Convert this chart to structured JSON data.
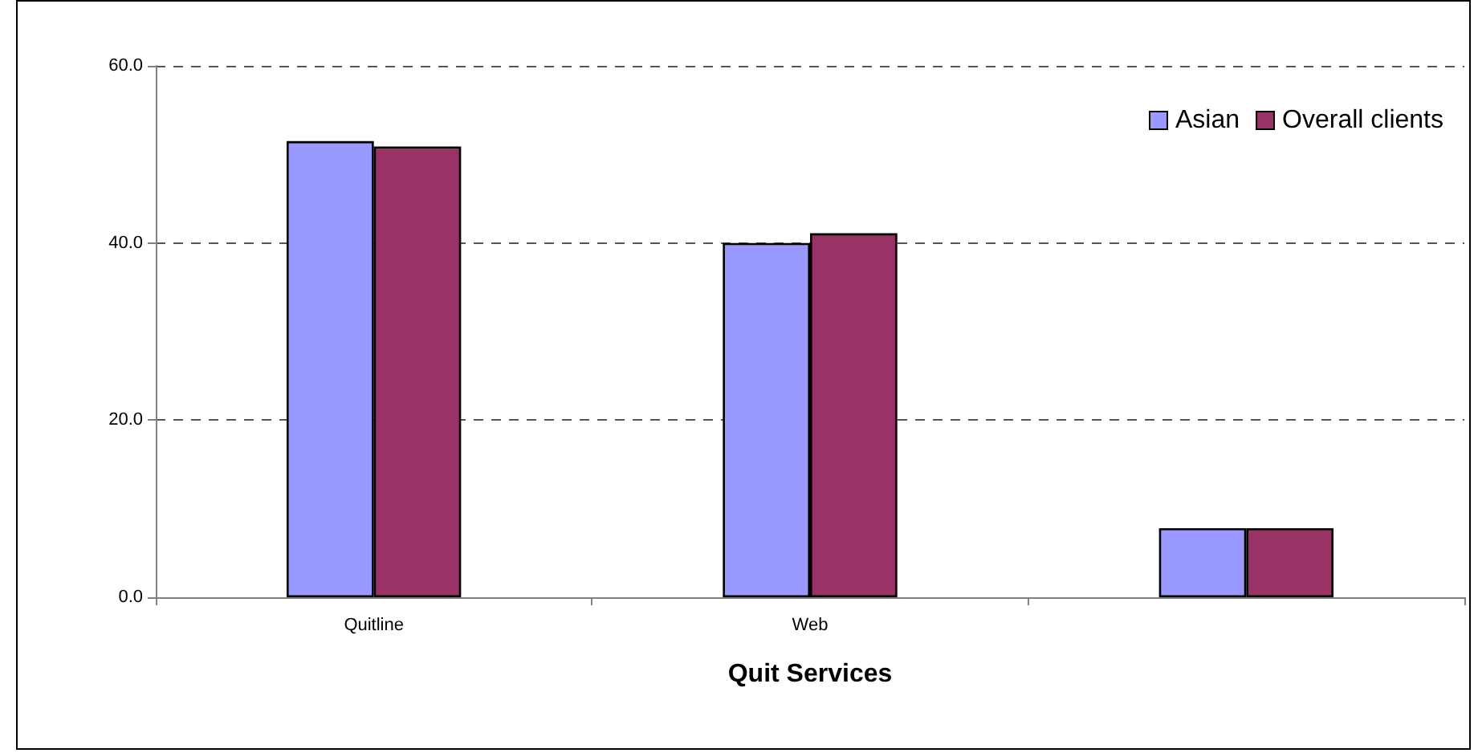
{
  "chart_data": {
    "type": "bar",
    "xlabel": "Quit Services",
    "categories": [
      "Quitline",
      "Web",
      null
    ],
    "series": [
      {
        "name": "Asian",
        "color": "#9999ff",
        "values": [
          51.5,
          40.0,
          7.8
        ]
      },
      {
        "name": "Overall clients",
        "color": "#993366",
        "values": [
          50.9,
          41.1,
          7.8
        ]
      }
    ],
    "ylim": [
      0,
      60
    ],
    "yticks": [
      {
        "value": 0,
        "label": "0.0"
      },
      {
        "value": 20,
        "label": "20.0"
      },
      {
        "value": 40,
        "label": "40.0"
      },
      {
        "value": 60,
        "label": "60.0"
      }
    ],
    "grid": "y",
    "legend": "top right"
  }
}
